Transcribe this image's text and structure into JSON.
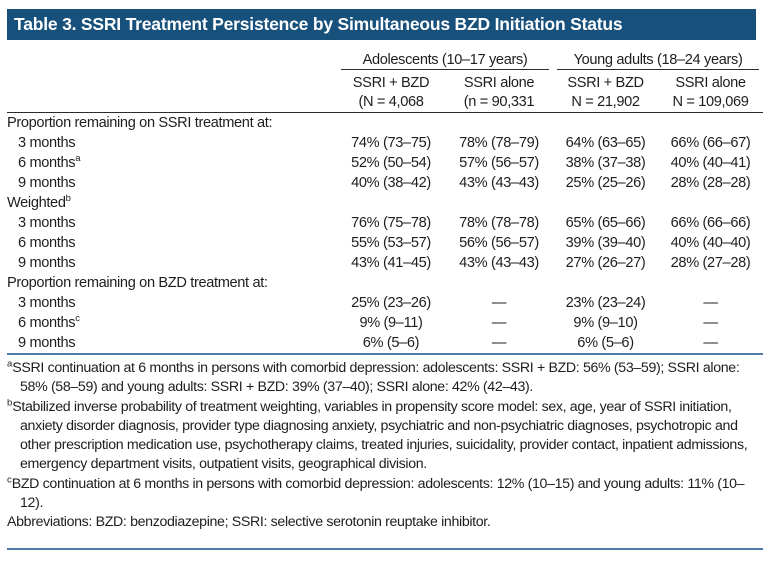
{
  "title": "Table 3. SSRI Treatment Persistence by Simultaneous BZD Initiation Status",
  "colors": {
    "header_bar_bg": "#18507C",
    "header_bar_text": "#FFFFFF",
    "rule_black": "#2B2B2B",
    "rule_blue": "#4E7CA9",
    "body_text": "#1E1E1C"
  },
  "table": {
    "group_headers": [
      {
        "label": "Adolescents (10–17 years)"
      },
      {
        "label": "Young adults (18–24 years)"
      }
    ],
    "column_headers": [
      {
        "line1": "SSRI + BZD",
        "line2": "(N = 4,068"
      },
      {
        "line1": "SSRI alone",
        "line2": "(n = 90,331"
      },
      {
        "line1": "SSRI + BZD",
        "line2": "N = 21,902"
      },
      {
        "line1": "SSRI alone",
        "line2": "N = 109,069"
      }
    ],
    "rows": [
      {
        "label": "Proportion remaining on SSRI treatment at:",
        "sup": "",
        "indent": false,
        "values": [
          "",
          "",
          "",
          ""
        ]
      },
      {
        "label": "3 months",
        "sup": "",
        "indent": true,
        "values": [
          "74% (73–75)",
          "78% (78–79)",
          "64% (63–65)",
          "66% (66–67)"
        ]
      },
      {
        "label": "6 months",
        "sup": "a",
        "indent": true,
        "values": [
          "52% (50–54)",
          "57% (56–57)",
          "38% (37–38)",
          "40% (40–41)"
        ]
      },
      {
        "label": "9 months",
        "sup": "",
        "indent": true,
        "values": [
          "40% (38–42)",
          "43% (43–43)",
          "25% (25–26)",
          "28% (28–28)"
        ]
      },
      {
        "label": "Weighted",
        "sup": "b",
        "indent": false,
        "values": [
          "",
          "",
          "",
          ""
        ]
      },
      {
        "label": "3 months",
        "sup": "",
        "indent": true,
        "values": [
          "76% (75–78)",
          "78% (78–78)",
          "65% (65–66)",
          "66% (66–66)"
        ]
      },
      {
        "label": "6 months",
        "sup": "",
        "indent": true,
        "values": [
          "55% (53–57)",
          "56% (56–57)",
          "39% (39–40)",
          "40% (40–40)"
        ]
      },
      {
        "label": "9 months",
        "sup": "",
        "indent": true,
        "values": [
          "43% (41–45)",
          "43% (43–43)",
          "27% (26–27)",
          "28% (27–28)"
        ]
      },
      {
        "label": "Proportion remaining on BZD treatment at:",
        "sup": "",
        "indent": false,
        "values": [
          "",
          "",
          "",
          ""
        ]
      },
      {
        "label": "3 months",
        "sup": "",
        "indent": true,
        "values": [
          "25% (23–26)",
          "—",
          "23% (23–24)",
          "—"
        ]
      },
      {
        "label": "6 months",
        "sup": "c",
        "indent": true,
        "values": [
          "9% (9–11)",
          "—",
          "9% (9–10)",
          "—"
        ]
      },
      {
        "label": "9 months",
        "sup": "",
        "indent": true,
        "values": [
          "6% (5–6)",
          "—",
          "6% (5–6)",
          "—"
        ]
      }
    ]
  },
  "footnotes": [
    {
      "sup": "a",
      "text": "SSRI continuation at 6 months in persons with comorbid depression: adolescents: SSRI + BZD: 56% (53–59); SSRI alone: 58% (58–59) and young adults: SSRI + BZD: 39% (37–40); SSRI alone: 42% (42–43)."
    },
    {
      "sup": "b",
      "text": "Stabilized inverse probability of treatment weighting, variables in propensity score model: sex, age, year of SSRI initiation, anxiety disorder diagnosis, provider type diagnosing anxiety, psychiatric and non-psychiatric diagnoses, psychotropic and other prescription medication use, psychotherapy claims, treated injuries, suicidality, provider contact, inpatient admissions, emergency department visits, outpatient visits, geographical division."
    },
    {
      "sup": "c",
      "text": "BZD continuation at 6 months in persons with comorbid depression: adolescents: 12% (10–15) and young adults: 11% (10–12)."
    },
    {
      "sup": "",
      "text": "Abbreviations: BZD: benzodiazepine; SSRI: selective serotonin reuptake inhibitor."
    }
  ]
}
